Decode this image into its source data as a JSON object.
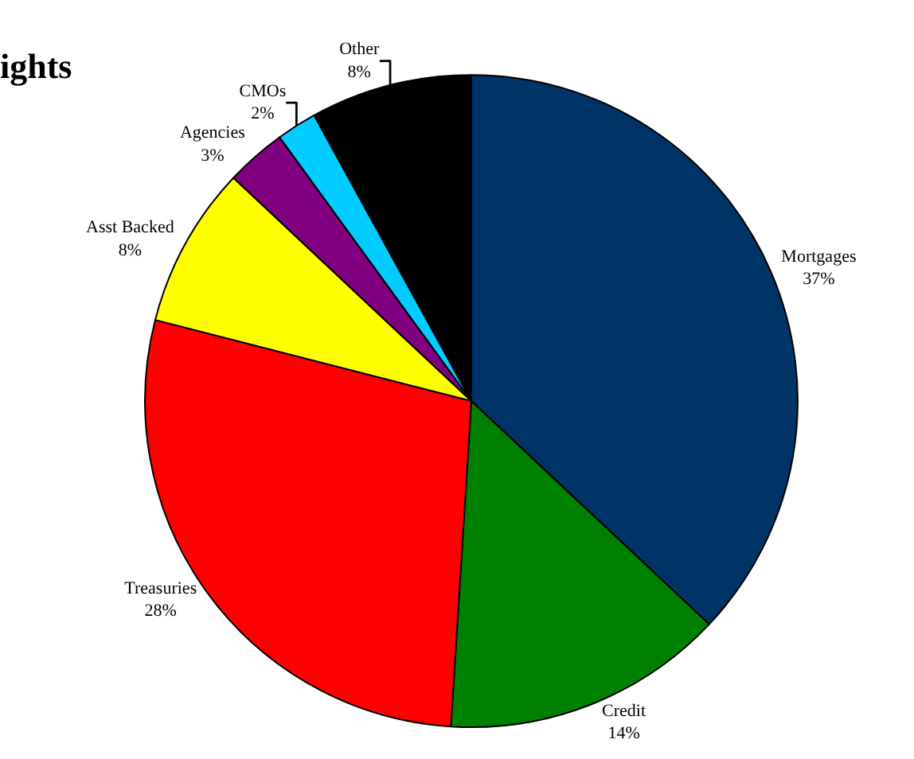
{
  "chart_data": {
    "type": "pie",
    "title": "ights",
    "categories": [
      "Mortgages",
      "Credit",
      "Treasuries",
      "Asst Backed",
      "Agencies",
      "CMOs",
      "Other"
    ],
    "values": [
      37,
      14,
      28,
      8,
      3,
      2,
      8
    ],
    "value_labels": [
      "37%",
      "14%",
      "28%",
      "8%",
      "3%",
      "2%",
      "8%"
    ],
    "colors": [
      "#003366",
      "#008000",
      "#ff0000",
      "#ffff00",
      "#800080",
      "#00ccff",
      "#000000"
    ],
    "legend": false
  }
}
